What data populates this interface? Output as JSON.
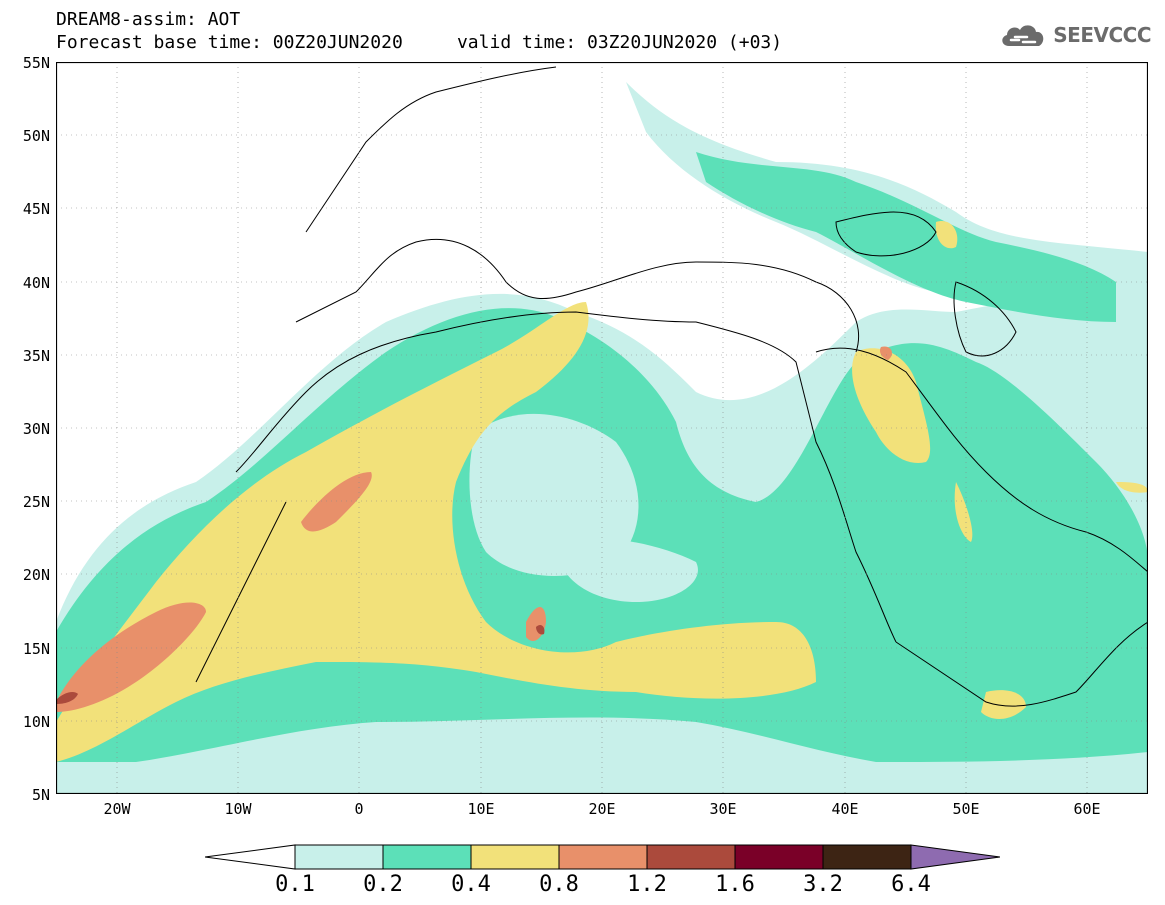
{
  "header": {
    "title_line1": "DREAM8-assim: AOT",
    "title_line2": "Forecast base time: 00Z20JUN2020     valid time: 03Z20JUN2020 (+03)",
    "logo_text": "SEEVCCC"
  },
  "axes": {
    "lat_labels": [
      "55N",
      "50N",
      "45N",
      "40N",
      "35N",
      "30N",
      "25N",
      "20N",
      "15N",
      "10N",
      "5N"
    ],
    "lon_labels": [
      "20W",
      "10W",
      "0",
      "10E",
      "20E",
      "30E",
      "40E",
      "50E",
      "60E"
    ],
    "lon_range": [
      -25,
      65
    ],
    "lat_range": [
      5,
      55
    ]
  },
  "colorbar": {
    "labels": [
      "0.1",
      "0.2",
      "0.4",
      "0.8",
      "1.2",
      "1.6",
      "3.2",
      "6.4"
    ],
    "colors": [
      "#c8f0ea",
      "#5ce0b8",
      "#f2e17a",
      "#e8906a",
      "#ab4a3c",
      "#7a0028",
      "#3d2414",
      "#8e6bb0"
    ]
  },
  "colors": {
    "level_0_1": "#c8f0ea",
    "level_0_2": "#5ce0b8",
    "level_0_4": "#f2e17a",
    "level_0_8": "#e8906a",
    "level_1_2": "#ab4a3c"
  }
}
